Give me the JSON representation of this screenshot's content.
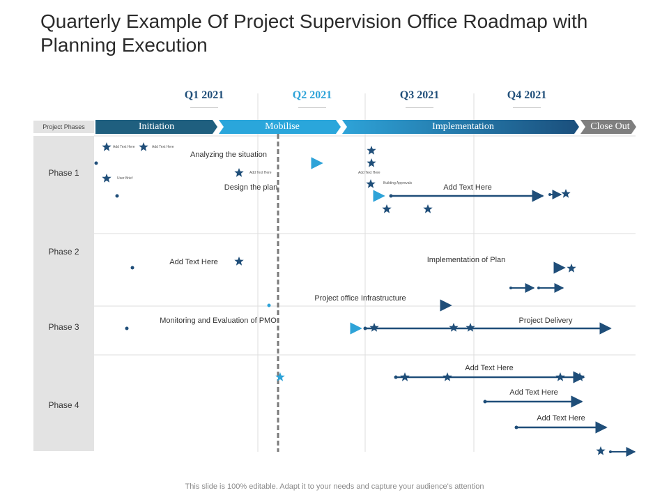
{
  "title": "Quarterly Example Of Project Supervision Office  Roadmap with Planning Execution",
  "quarters": [
    {
      "label": "Q1 2021",
      "color": "#1f4e79"
    },
    {
      "label": "Q2 2021",
      "color": "#2ea3d8"
    },
    {
      "label": "Q3 2021",
      "color": "#1f4e79"
    },
    {
      "label": "Q4 2021",
      "color": "#1f4e79"
    }
  ],
  "phase_header": "Project Phases",
  "stages": [
    {
      "label": "Initiation",
      "color": "#1f5f7f"
    },
    {
      "label": "Mobilise",
      "color": "#2aa6db"
    },
    {
      "label": "Implementation",
      "color": "#1a5f9c"
    },
    {
      "label": "Close Out",
      "color": "#7f7f7f"
    }
  ],
  "phases": [
    "Phase 1",
    "Phase 2",
    "Phase 3",
    "Phase 4"
  ],
  "tasks": {
    "analyzing": "Analyzing the situation",
    "design": "Design the plan",
    "add_text_p1": "Add Text Here",
    "add_text_p2": "Add Text Here",
    "implementation_of_plan": "Implementation of Plan",
    "infrastructure": "Project office Infrastructure",
    "monitoring": "Monitoring and Evaluation of  PMO",
    "delivery": "Project Delivery",
    "add_text_p4a": "Add Text Here",
    "add_text_p4b": "Add Text Here",
    "add_text_p4c": "Add Text Here"
  },
  "milestones": {
    "m1": "Add Text Here",
    "m2": "Add Text Here",
    "m3": "User Brief",
    "m4": "Add Text Here",
    "m5": "Add Text Here",
    "m6": "Building Approvals"
  },
  "footer": "This slide is 100% editable. Adapt it to your needs and capture your audience's attention",
  "colors": {
    "dark": "#1f4e79",
    "light": "#2ea3d8",
    "grid": "#dddddd"
  }
}
